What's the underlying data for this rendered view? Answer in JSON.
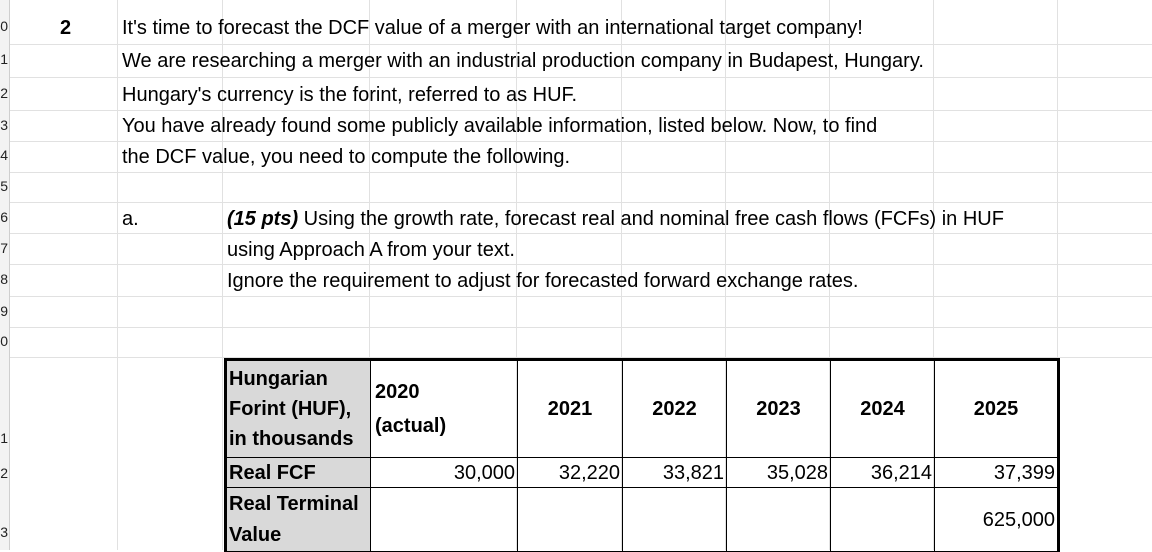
{
  "row_headers": [
    "0",
    "1",
    "2",
    "3",
    "4",
    "5",
    "6",
    "7",
    "8",
    "9",
    "0",
    "1",
    "2",
    "3"
  ],
  "problem": {
    "number": "2",
    "lines": [
      "It's time to forecast the DCF value of a merger with an international target company!",
      "We are researching a merger with an industrial production company in Budapest, Hungary.",
      "Hungary's currency is the forint, referred to as HUF.",
      "You have already found some publicly available information, listed below.  Now, to find",
      "the DCF value, you need to compute the following."
    ]
  },
  "part_a": {
    "label": "a.",
    "points": "(15 pts)",
    "line1_rest": " Using the growth rate, forecast real and nominal free cash flows (FCFs) in HUF",
    "line2": "using Approach A from your text.",
    "line3": "Ignore the requirement to adjust for forecasted forward exchange rates."
  },
  "table": {
    "corner": [
      "Hungarian",
      "Forint (HUF),",
      "in thousands"
    ],
    "year_2020": [
      "2020",
      "(actual)"
    ],
    "years": [
      "2021",
      "2022",
      "2023",
      "2024",
      "2025"
    ],
    "rows": [
      {
        "label": "Real FCF",
        "values": [
          "30,000",
          "32,220",
          "33,821",
          "35,028",
          "36,214",
          "37,399"
        ]
      },
      {
        "label_lines": [
          "Real Terminal",
          "Value"
        ],
        "values": [
          "",
          "",
          "",
          "",
          "",
          "625,000"
        ]
      }
    ]
  }
}
